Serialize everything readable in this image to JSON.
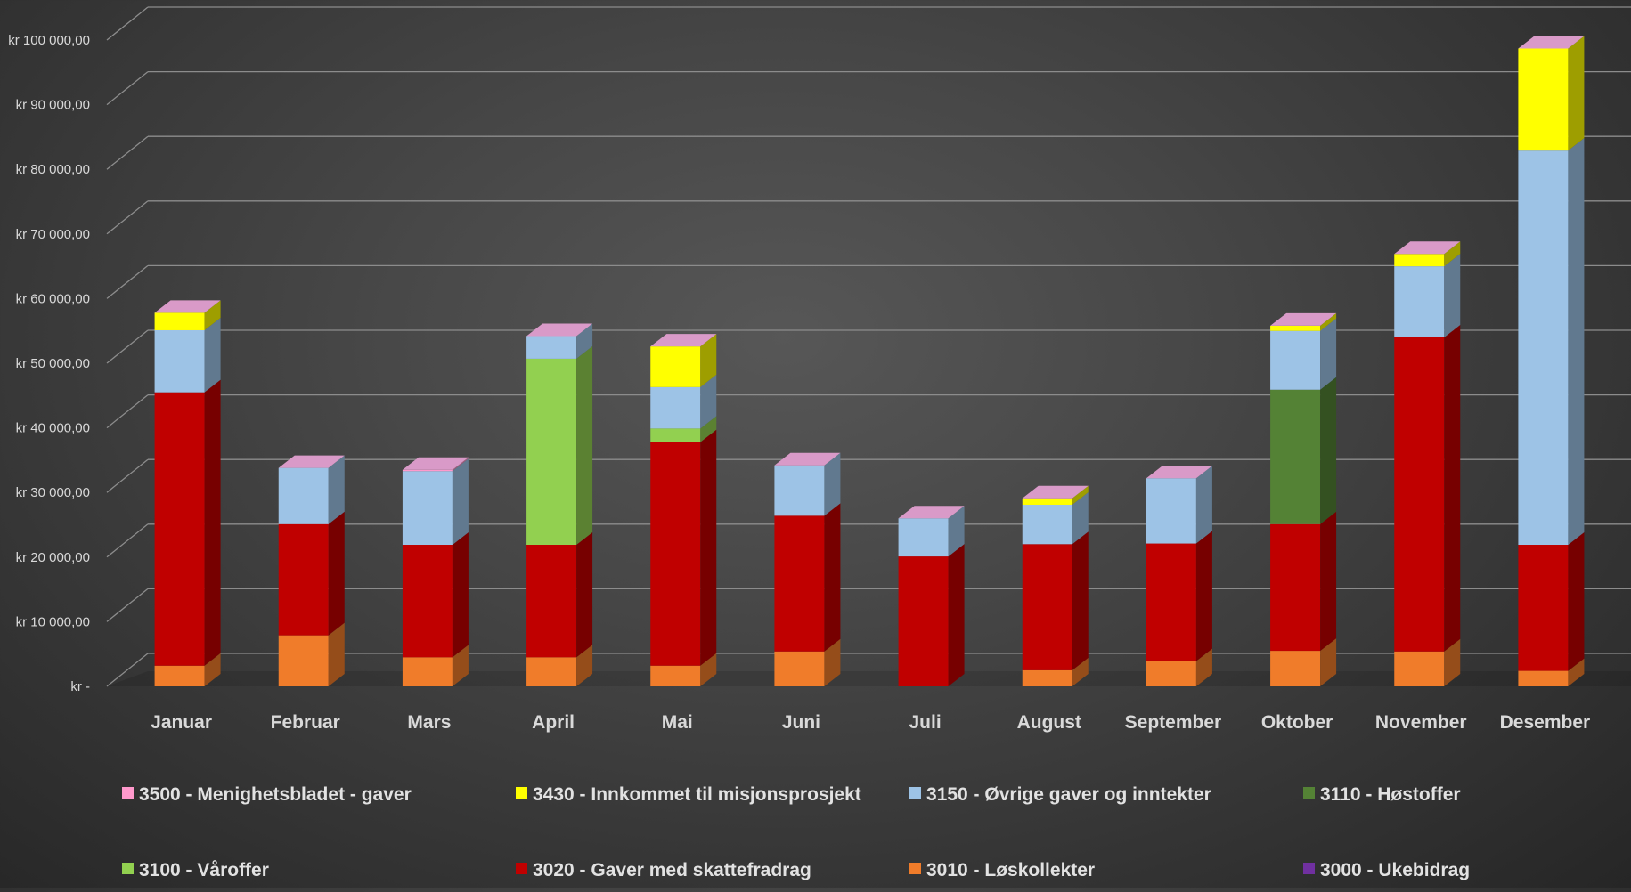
{
  "chart_data": {
    "type": "bar",
    "stacked": true,
    "three_d": true,
    "categories": [
      "Januar",
      "Februar",
      "Mars",
      "April",
      "Mai",
      "Juni",
      "Juli",
      "August",
      "September",
      "Oktober",
      "November",
      "Desember"
    ],
    "y_tick_labels": [
      "kr -",
      "kr 10 000,00",
      "kr 20 000,00",
      "kr 30 000,00",
      "kr 40 000,00",
      "kr 50 000,00",
      "kr 60 000,00",
      "kr 70 000,00",
      "kr 80 000,00",
      "kr 90 000,00",
      "kr 100 000,00"
    ],
    "ylim": [
      0,
      100000
    ],
    "grid": true,
    "legend_position": "bottom",
    "series": [
      {
        "name": "3000 - Ukebidrag",
        "color": "#7030a0",
        "values": [
          0,
          0,
          0,
          0,
          0,
          0,
          0,
          0,
          0,
          0,
          0,
          0
        ]
      },
      {
        "name": "3010 - Løskollekter",
        "color": "#f07c2a",
        "values": [
          3200,
          7900,
          4500,
          4500,
          3200,
          5400,
          0,
          2500,
          3900,
          5500,
          5400,
          2400
        ]
      },
      {
        "name": "3020 - Gaver med skattefradrag",
        "color": "#c00000",
        "values": [
          42300,
          17200,
          17400,
          17400,
          34600,
          21000,
          20100,
          19500,
          18200,
          19600,
          48600,
          19500
        ]
      },
      {
        "name": "3100 - Våroffer",
        "color": "#92d050",
        "values": [
          0,
          0,
          0,
          28800,
          2100,
          0,
          0,
          0,
          0,
          0,
          0,
          0
        ]
      },
      {
        "name": "3110 - Høstoffer",
        "color": "#548235",
        "values": [
          0,
          0,
          0,
          0,
          0,
          0,
          0,
          0,
          0,
          20800,
          0,
          0
        ]
      },
      {
        "name": "3150 - Øvrige gaver og inntekter",
        "color": "#9dc3e6",
        "values": [
          9600,
          8700,
          11400,
          3500,
          6400,
          7800,
          5900,
          6100,
          10100,
          9100,
          11000,
          61000
        ]
      },
      {
        "name": "3430 - Innkommet til misjonsprosjekt",
        "color": "#ffff00",
        "values": [
          2700,
          0,
          0,
          0,
          6300,
          0,
          0,
          1000,
          0,
          800,
          1900,
          15800
        ]
      },
      {
        "name": "3500 - Menighetsbladet - gaver",
        "color": "#ff99cc",
        "values": [
          0,
          0,
          200,
          0,
          0,
          0,
          0,
          0,
          0,
          0,
          0,
          0
        ]
      }
    ],
    "legend_order": [
      "3500 - Menighetsbladet - gaver",
      "3430 - Innkommet til misjonsprosjekt",
      "3150 - Øvrige gaver og inntekter",
      "3110 - Høstoffer",
      "3100 - Våroffer",
      "3020 - Gaver med skattefradrag",
      "3010 - Løskollekter",
      "3000 - Ukebidrag"
    ],
    "colors": {
      "background": "#454545",
      "gridline": "#8c8c8c",
      "text": "#d9d9d9",
      "top_cap": "#d99ac8"
    }
  }
}
